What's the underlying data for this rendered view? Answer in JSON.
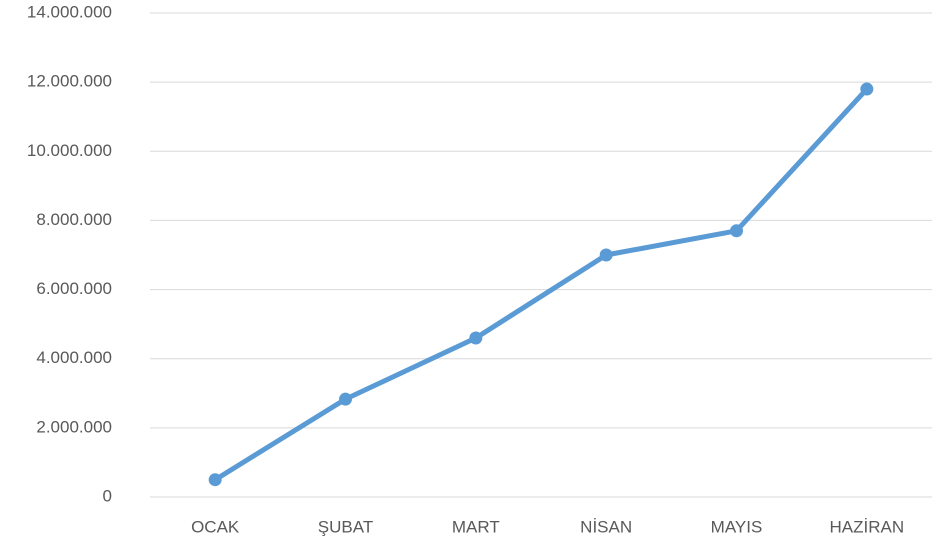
{
  "chart_data": {
    "type": "line",
    "categories": [
      "OCAK",
      "ŞUBAT",
      "MART",
      "NİSAN",
      "MAYIS",
      "HAZİRAN"
    ],
    "series": [
      {
        "color": "#5b9bd5",
        "values": [
          500000,
          2830000,
          4600000,
          7000000,
          7700000,
          11800000
        ]
      }
    ],
    "ylim": [
      0,
      14000000
    ],
    "yticks": [
      0,
      {
        "value": 2000000,
        "label": "2.000.000"
      },
      {
        "value": 4000000,
        "label": "4.000.000"
      },
      {
        "value": 6000000,
        "label": "6.000.000"
      },
      {
        "value": 8000000,
        "label": "8.000.000"
      },
      {
        "value": 10000000,
        "label": "10.000.000"
      },
      {
        "value": 12000000,
        "label": "12.000.000"
      },
      {
        "value": 14000000,
        "label": "14.000.000"
      }
    ],
    "grid": true
  }
}
